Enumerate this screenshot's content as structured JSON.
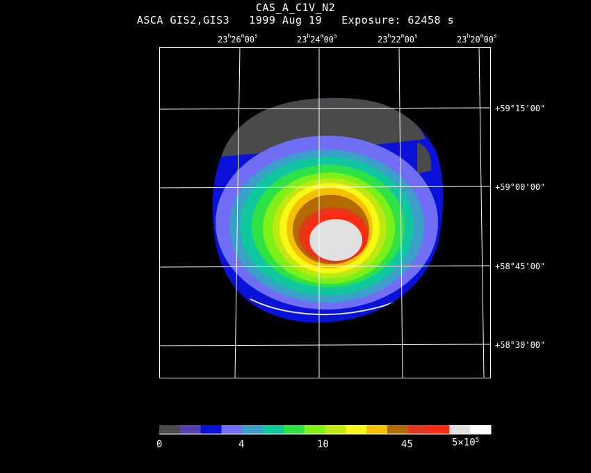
{
  "header": {
    "target": "CAS_A_C1V_N2",
    "instrument": "ASCA GIS2,GIS3",
    "date": "1999 Aug 19",
    "exposure": "Exposure: 62458 s"
  },
  "ra_labels": [
    {
      "h": "23",
      "m": "26",
      "s": "00"
    },
    {
      "h": "23",
      "m": "24",
      "s": "00"
    },
    {
      "h": "23",
      "m": "22",
      "s": "00"
    },
    {
      "h": "23",
      "m": "20",
      "s": "00"
    }
  ],
  "dec_labels": [
    "+59°15'00\"",
    "+59°00'00\"",
    "+58°45'00\"",
    "+58°30'00\""
  ],
  "colorbar": {
    "colors": [
      "#4a4a4a",
      "#5a3fb0",
      "#0b12d8",
      "#6f6ef4",
      "#3aa0c8",
      "#10c7a0",
      "#2ee246",
      "#7cf018",
      "#bde812",
      "#f8f814",
      "#f6c000",
      "#b36a00",
      "#e03a1a",
      "#ff2a12",
      "#e0e0e0",
      "#ffffff"
    ],
    "ticks": [
      "0",
      "4",
      "10",
      "45"
    ],
    "max_tick": {
      "base": "5×10",
      "exp": "5"
    }
  },
  "image_colors": {
    "background": "#000000",
    "frame": "#ffffff",
    "grid": "#ffffff"
  }
}
